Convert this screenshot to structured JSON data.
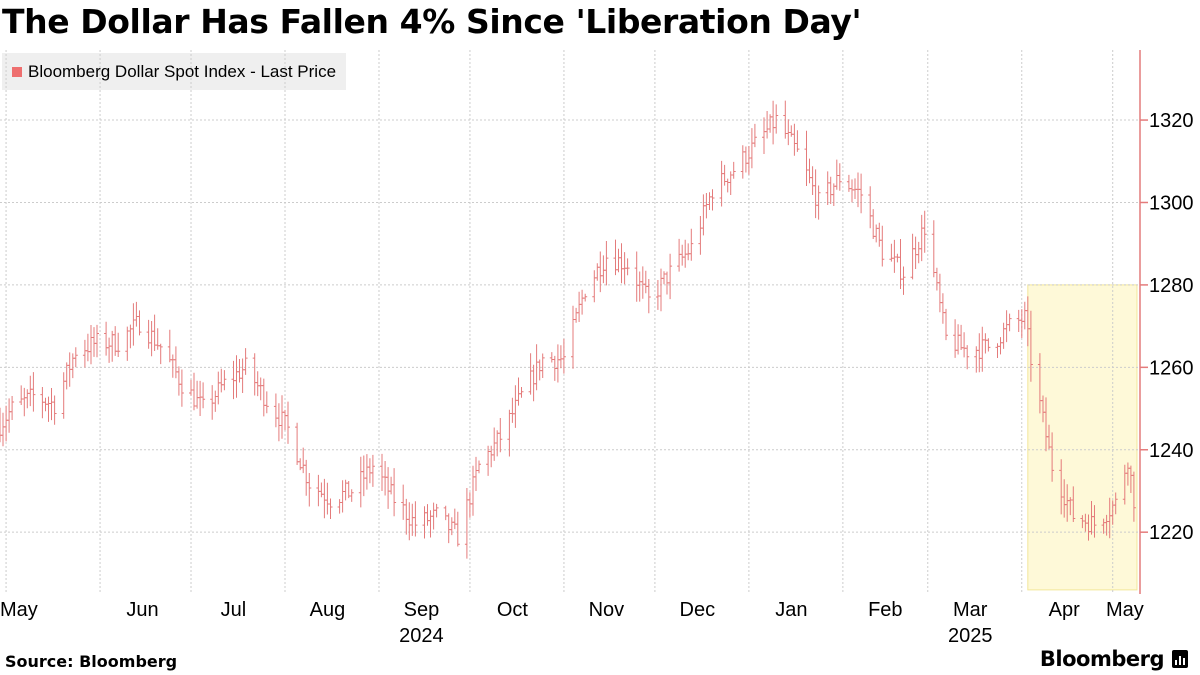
{
  "title": "The Dollar Has Fallen 4% Since 'Liberation Day'",
  "source": "Source: Bloomberg",
  "logo_text": "Bloomberg",
  "colors": {
    "series": "#e47b7b",
    "highlight_fill": "#fef9d8",
    "highlight_stroke": "#f3e79a",
    "grid": "#cccccc",
    "axis": "#e47b7b"
  },
  "chart_data": {
    "type": "ohlc",
    "title": "The Dollar Has Fallen 4% Since 'Liberation Day'",
    "legend": {
      "placement": "top-left",
      "entries": [
        "Bloomberg Dollar Spot Index - Last Price"
      ]
    },
    "y_axis": {
      "side": "right",
      "ylim": [
        1205,
        1337
      ],
      "ticks": [
        1220,
        1240,
        1260,
        1280,
        1300,
        1320
      ]
    },
    "x_axis": {
      "xlim": [
        "2024-04-29",
        "2025-05-10"
      ],
      "month_ticks": [
        "2024-05-01",
        "2024-06-01",
        "2024-07-01",
        "2024-08-01",
        "2024-09-01",
        "2024-10-01",
        "2024-11-01",
        "2024-12-01",
        "2025-01-01",
        "2025-02-01",
        "2025-03-01",
        "2025-04-01",
        "2025-05-01"
      ],
      "month_labels": [
        {
          "text": "May",
          "date": "2024-05-01"
        },
        {
          "text": "Jun",
          "date": "2024-06-15"
        },
        {
          "text": "Jul",
          "date": "2024-07-15"
        },
        {
          "text": "Aug",
          "date": "2024-08-15"
        },
        {
          "text": "Sep",
          "date": "2024-09-15"
        },
        {
          "text": "Oct",
          "date": "2024-10-15"
        },
        {
          "text": "Nov",
          "date": "2024-11-15"
        },
        {
          "text": "Dec",
          "date": "2024-12-15"
        },
        {
          "text": "Jan",
          "date": "2025-01-15"
        },
        {
          "text": "Feb",
          "date": "2025-02-15"
        },
        {
          "text": "Mar",
          "date": "2025-03-15"
        },
        {
          "text": "Apr",
          "date": "2025-04-15"
        },
        {
          "text": "May",
          "date": "2025-05-05"
        }
      ],
      "year_labels": [
        {
          "text": "2024",
          "date": "2024-09-15"
        },
        {
          "text": "2025",
          "date": "2025-03-15"
        }
      ]
    },
    "grid": true,
    "highlight": {
      "x_start": "2025-04-03",
      "x_end": "2025-05-09",
      "y_min": 1206,
      "y_max": 1280
    },
    "series": [
      {
        "name": "Bloomberg Dollar Spot Index - Last Price",
        "close_points": [
          [
            "2024-04-29",
            1246
          ],
          [
            "2024-05-03",
            1250
          ],
          [
            "2024-05-10",
            1253
          ],
          [
            "2024-05-17",
            1251
          ],
          [
            "2024-05-24",
            1264
          ],
          [
            "2024-05-31",
            1266
          ],
          [
            "2024-06-07",
            1266
          ],
          [
            "2024-06-14",
            1271
          ],
          [
            "2024-06-21",
            1265
          ],
          [
            "2024-06-28",
            1256
          ],
          [
            "2024-07-05",
            1250
          ],
          [
            "2024-07-12",
            1256
          ],
          [
            "2024-07-19",
            1260
          ],
          [
            "2024-07-26",
            1252
          ],
          [
            "2024-08-02",
            1245
          ],
          [
            "2024-08-09",
            1232
          ],
          [
            "2024-08-16",
            1228
          ],
          [
            "2024-08-23",
            1230
          ],
          [
            "2024-08-30",
            1236
          ],
          [
            "2024-09-06",
            1228
          ],
          [
            "2024-09-13",
            1222
          ],
          [
            "2024-09-20",
            1224
          ],
          [
            "2024-09-27",
            1219
          ],
          [
            "2024-10-04",
            1236
          ],
          [
            "2024-10-11",
            1243
          ],
          [
            "2024-10-18",
            1253
          ],
          [
            "2024-10-25",
            1262
          ],
          [
            "2024-11-01",
            1262
          ],
          [
            "2024-11-08",
            1279
          ],
          [
            "2024-11-15",
            1287
          ],
          [
            "2024-11-22",
            1285
          ],
          [
            "2024-11-29",
            1276
          ],
          [
            "2024-12-06",
            1283
          ],
          [
            "2024-12-13",
            1289
          ],
          [
            "2024-12-20",
            1303
          ],
          [
            "2024-12-27",
            1308
          ],
          [
            "2025-01-03",
            1314
          ],
          [
            "2025-01-10",
            1320
          ],
          [
            "2025-01-17",
            1312
          ],
          [
            "2025-01-24",
            1300
          ],
          [
            "2025-01-31",
            1306
          ],
          [
            "2025-02-07",
            1302
          ],
          [
            "2025-02-14",
            1288
          ],
          [
            "2025-02-21",
            1283
          ],
          [
            "2025-02-28",
            1294
          ],
          [
            "2025-03-07",
            1267
          ],
          [
            "2025-03-14",
            1264
          ],
          [
            "2025-03-21",
            1265
          ],
          [
            "2025-03-28",
            1270
          ],
          [
            "2025-04-02",
            1272
          ],
          [
            "2025-04-04",
            1262
          ],
          [
            "2025-04-11",
            1236
          ],
          [
            "2025-04-18",
            1224
          ],
          [
            "2025-04-25",
            1222
          ],
          [
            "2025-05-02",
            1227
          ],
          [
            "2025-05-06",
            1238
          ],
          [
            "2025-05-09",
            1223
          ]
        ]
      }
    ]
  }
}
